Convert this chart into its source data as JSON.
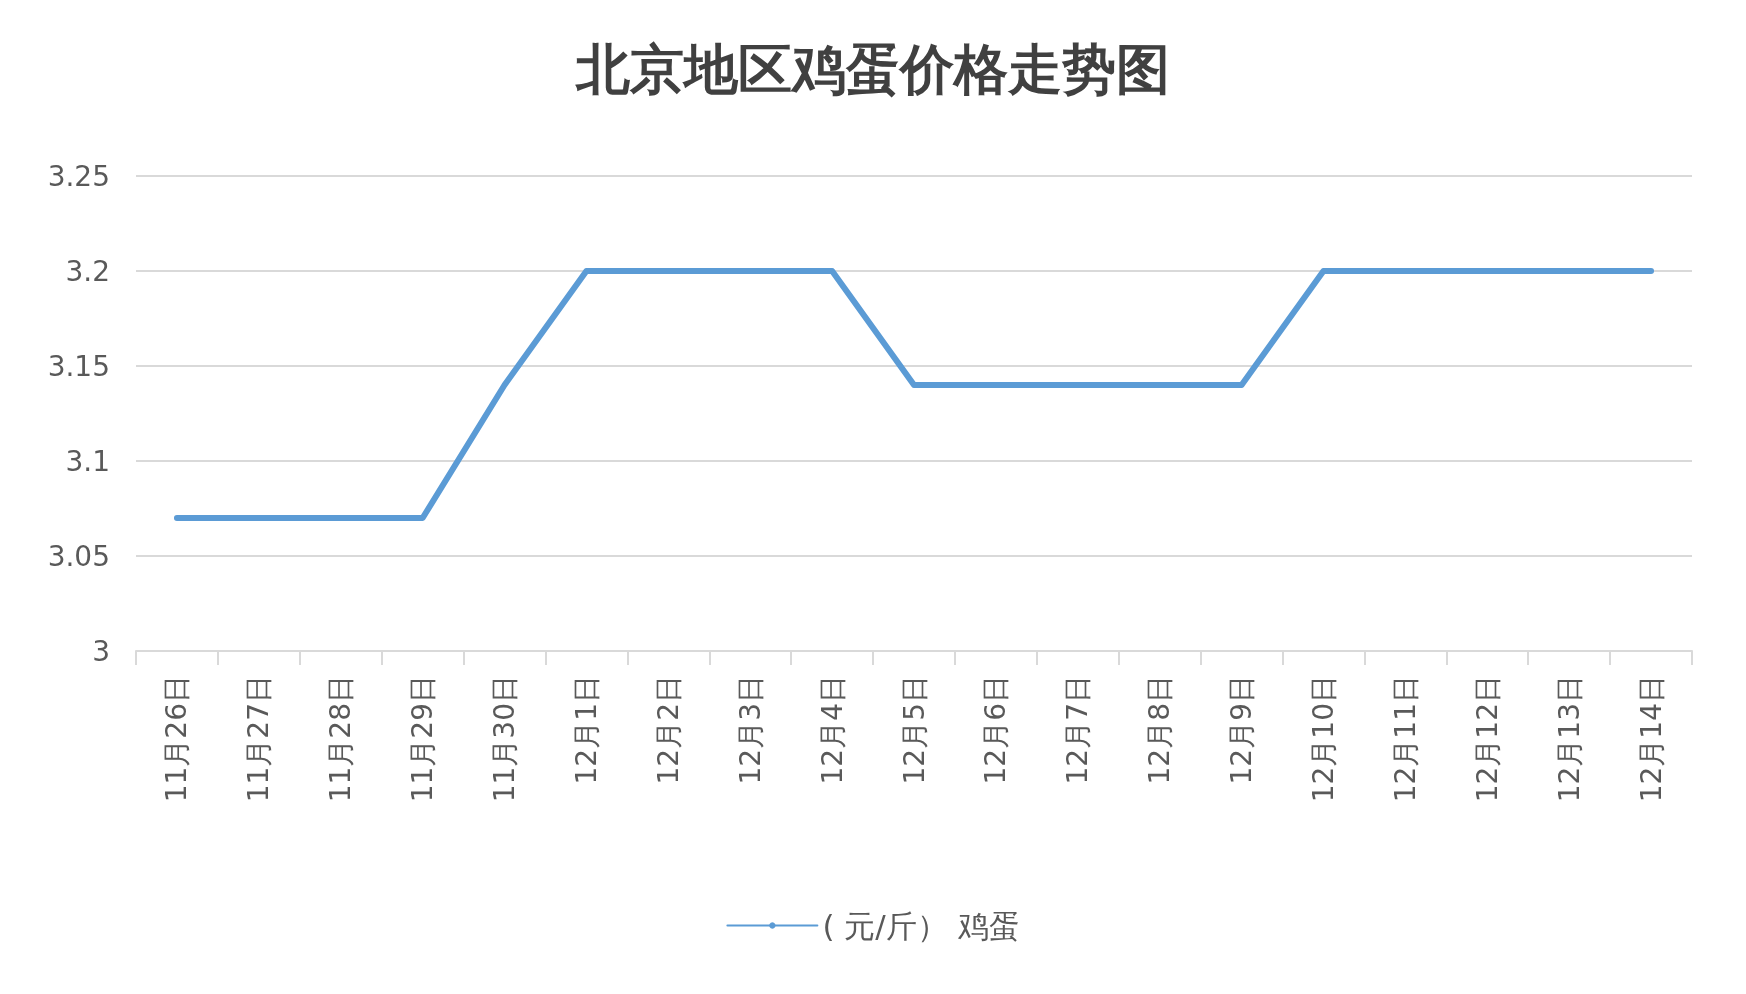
{
  "chart_data": {
    "type": "line",
    "title": "北京地区鸡蛋价格走势图",
    "categories": [
      "11月26日",
      "11月27日",
      "11月28日",
      "11月29日",
      "11月30日",
      "12月1日",
      "12月2日",
      "12月3日",
      "12月4日",
      "12月5日",
      "12月6日",
      "12月7日",
      "12月8日",
      "12月9日",
      "12月10日",
      "12月11日",
      "12月12日",
      "12月13日",
      "12月14日"
    ],
    "series": [
      {
        "name": "( 元/斤） 鸡蛋",
        "color": "#5b9bd5",
        "values": [
          3.07,
          3.07,
          3.07,
          3.07,
          3.14,
          3.2,
          3.2,
          3.2,
          3.2,
          3.14,
          3.14,
          3.14,
          3.14,
          3.14,
          3.2,
          3.2,
          3.2,
          3.2,
          3.2
        ]
      }
    ],
    "ylim": [
      3,
      3.25
    ],
    "yticks": [
      3,
      3.05,
      3.1,
      3.15,
      3.2,
      3.25
    ],
    "grid": "y",
    "legend": "bottom",
    "marker": "none",
    "line_style": "solid"
  }
}
